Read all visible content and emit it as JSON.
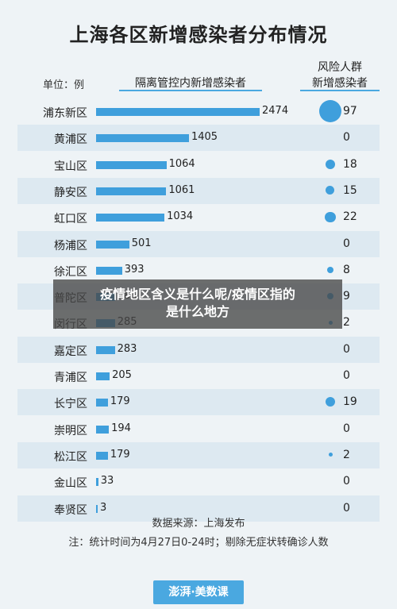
{
  "chart_data": {
    "type": "bar",
    "title": "上海各区新增感染者分布情况",
    "unit_label": "单位：例",
    "quarantine_header": "隔离管控内新增感染者",
    "risk_header_line1": "风险人群",
    "risk_header_line2": "新增感染者",
    "categories": [
      "浦东新区",
      "黄浦区",
      "宝山区",
      "静安区",
      "虹口区",
      "杨浦区",
      "徐汇区",
      "普陀区",
      "闵行区",
      "嘉定区",
      "青浦区",
      "长宁区",
      "崇明区",
      "松江区",
      "金山区",
      "奉贤区"
    ],
    "series": [
      {
        "name": "隔离管控内新增感染者",
        "values": [
          2474,
          1405,
          1064,
          1061,
          1034,
          501,
          393,
          286,
          285,
          283,
          205,
          179,
          194,
          179,
          33,
          3
        ]
      },
      {
        "name": "风险人群新增感染者",
        "values": [
          97,
          0,
          18,
          15,
          22,
          0,
          8,
          9,
          2,
          0,
          0,
          19,
          0,
          2,
          0,
          0
        ]
      }
    ],
    "source": "数据来源：上海发布",
    "note": "注：统计时间为4月27日0-24时；剔除无症状转确诊人数"
  },
  "overlay": {
    "line1": "疫情地区含义是什么呢/疫情区指的",
    "line2": "是什么地方"
  },
  "brand": "澎湃·美数课",
  "colors": {
    "bar": "#3f9fdc",
    "row_alt": "#dde9f1",
    "accent": "#4aa8e0"
  }
}
